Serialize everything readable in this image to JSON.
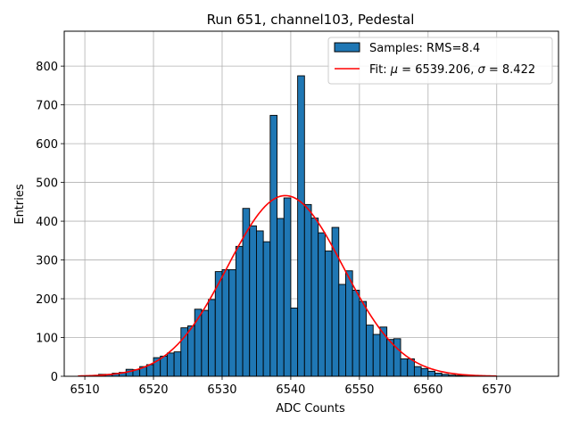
{
  "chart_data": {
    "type": "bar",
    "title": "Run 651, channel103, Pedestal",
    "xlabel": "ADC Counts",
    "ylabel": "Entries",
    "xlim": [
      6507,
      6579
    ],
    "ylim": [
      0,
      890
    ],
    "xticks": [
      6510,
      6520,
      6530,
      6540,
      6550,
      6560,
      6570
    ],
    "yticks": [
      0,
      100,
      200,
      300,
      400,
      500,
      600,
      700,
      800
    ],
    "grid": true,
    "legend_position": "top-right",
    "histogram": {
      "name": "Samples: RMS=8.4",
      "color": "#1f77b4",
      "edge_color": "#000000",
      "bin_width": 1,
      "bin_starts": [
        6510,
        6511,
        6512,
        6513,
        6514,
        6515,
        6516,
        6517,
        6518,
        6519,
        6520,
        6521,
        6522,
        6523,
        6524,
        6525,
        6526,
        6527,
        6528,
        6529,
        6530,
        6531,
        6532,
        6533,
        6534,
        6535,
        6536,
        6537,
        6538,
        6539,
        6540,
        6541,
        6542,
        6543,
        6544,
        6545,
        6546,
        6547,
        6548,
        6549,
        6550,
        6551,
        6552,
        6553,
        6554,
        6555,
        6556,
        6557,
        6558,
        6559,
        6560,
        6561,
        6562,
        6563,
        6564,
        6565,
        6566,
        6567,
        6568,
        6569
      ],
      "values": [
        1,
        2,
        5,
        5,
        8,
        10,
        18,
        17,
        25,
        30,
        48,
        52,
        60,
        63,
        125,
        130,
        173,
        170,
        198,
        270,
        275,
        275,
        335,
        433,
        388,
        375,
        347,
        673,
        407,
        460,
        176,
        775,
        443,
        408,
        370,
        323,
        384,
        237,
        272,
        222,
        193,
        132,
        108,
        127,
        95,
        97,
        45,
        45,
        25,
        20,
        13,
        8,
        5,
        3,
        2,
        1,
        1,
        0,
        0,
        0
      ]
    },
    "fit": {
      "name": "Fit: μ = 6539.206, σ = 8.422",
      "label_prefix": "Fit: ",
      "mu_symbol": "μ",
      "mu_value_text": " = 6539.206, ",
      "sigma_symbol": "σ",
      "sigma_value_text": " = 8.422",
      "color": "#ff0000",
      "mu": 6539.206,
      "sigma": 8.422,
      "amplitude": 466,
      "x_range": [
        6509,
        6570
      ]
    }
  }
}
